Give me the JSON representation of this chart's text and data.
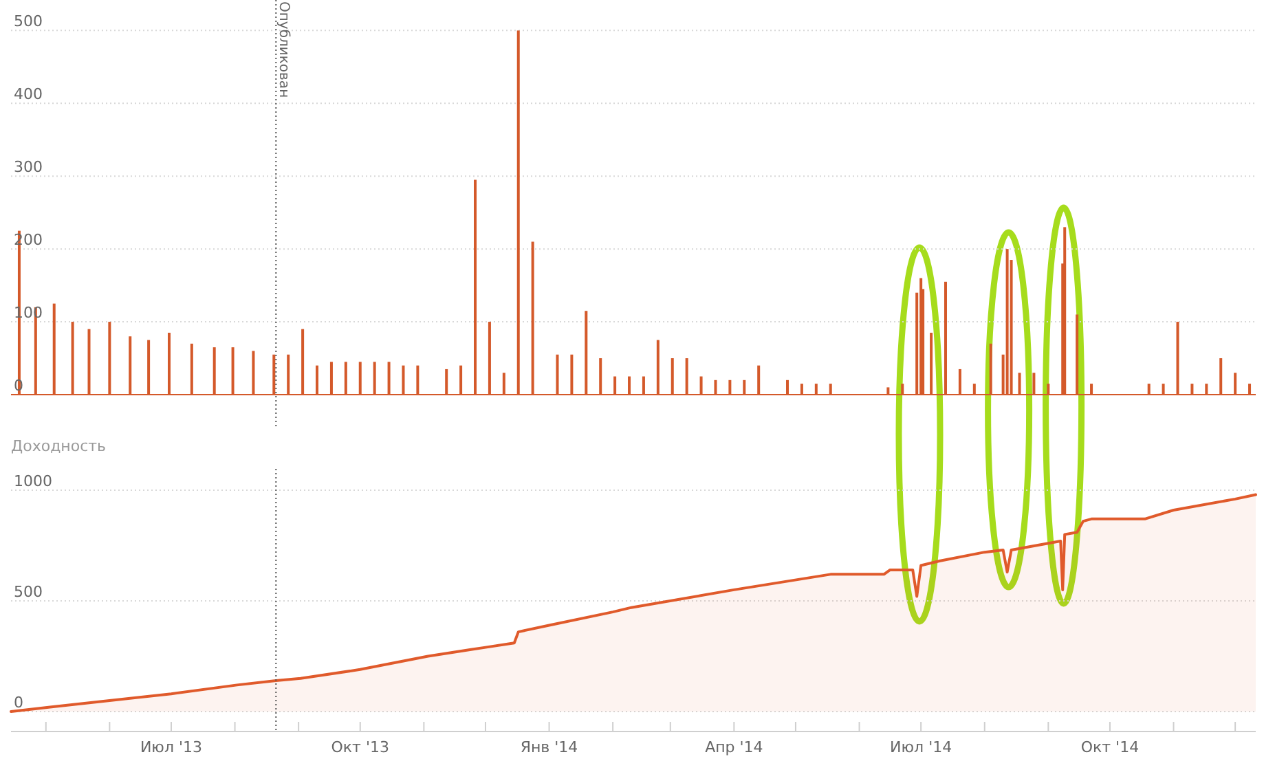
{
  "chart_data": [
    {
      "type": "bar",
      "color": "#d4592a",
      "x": [
        "2013-04-18",
        "2013-04-26",
        "2013-05-05",
        "2013-05-14",
        "2013-05-22",
        "2013-06-01",
        "2013-06-11",
        "2013-06-20",
        "2013-06-30",
        "2013-07-11",
        "2013-07-22",
        "2013-07-31",
        "2013-08-10",
        "2013-08-20",
        "2013-08-27",
        "2013-09-03",
        "2013-09-10",
        "2013-09-17",
        "2013-09-24",
        "2013-10-01",
        "2013-10-08",
        "2013-10-15",
        "2013-10-22",
        "2013-10-29",
        "2013-11-12",
        "2013-11-19",
        "2013-11-26",
        "2013-12-03",
        "2013-12-10",
        "2013-12-17",
        "2013-12-24",
        "2014-01-05",
        "2014-01-12",
        "2014-01-19",
        "2014-01-26",
        "2014-02-02",
        "2014-02-09",
        "2014-02-16",
        "2014-02-23",
        "2014-03-02",
        "2014-03-09",
        "2014-03-16",
        "2014-03-23",
        "2014-03-30",
        "2014-04-06",
        "2014-04-13",
        "2014-04-27",
        "2014-05-04",
        "2014-05-11",
        "2014-05-18",
        "2014-06-15",
        "2014-06-22",
        "2014-06-29",
        "2014-07-01",
        "2014-07-02",
        "2014-07-06",
        "2014-07-13",
        "2014-07-20",
        "2014-07-27",
        "2014-08-04",
        "2014-08-10",
        "2014-08-12",
        "2014-08-14",
        "2014-08-18",
        "2014-08-25",
        "2014-09-01",
        "2014-09-08",
        "2014-09-09",
        "2014-09-15",
        "2014-09-22",
        "2014-10-20",
        "2014-10-27",
        "2014-11-03",
        "2014-11-10",
        "2014-11-17",
        "2014-11-24",
        "2014-12-01",
        "2014-12-08"
      ],
      "values": [
        225,
        120,
        125,
        100,
        90,
        100,
        80,
        75,
        85,
        70,
        65,
        65,
        60,
        55,
        55,
        90,
        40,
        45,
        45,
        45,
        45,
        45,
        40,
        40,
        35,
        40,
        295,
        100,
        30,
        500,
        210,
        55,
        55,
        115,
        50,
        25,
        25,
        25,
        75,
        50,
        50,
        25,
        20,
        20,
        20,
        40,
        20,
        15,
        15,
        15,
        10,
        15,
        140,
        160,
        145,
        85,
        155,
        35,
        15,
        70,
        55,
        200,
        185,
        30,
        30,
        15,
        180,
        230,
        110,
        15,
        15,
        15,
        100,
        15,
        15,
        50,
        30,
        15
      ],
      "xlim": [
        "2013-04-14",
        "2014-12-11"
      ],
      "ylim": [
        0,
        540
      ],
      "yticks": [
        0,
        100,
        200,
        300,
        400,
        500
      ],
      "grid": "y",
      "tick_labels": "y",
      "ref_lines": [
        {
          "axis": "x",
          "value": "2013-08-21",
          "label": "Опубликован"
        }
      ]
    },
    {
      "type": "area",
      "title": "Доходность",
      "color": "#e05a2b",
      "x": [
        "2013-04-14",
        "2013-05-03",
        "2013-06-01",
        "2013-07-01",
        "2013-08-02",
        "2013-08-21",
        "2013-09-02",
        "2013-10-01",
        "2013-11-03",
        "2013-11-24",
        "2013-12-01",
        "2013-12-15",
        "2013-12-17",
        "2014-01-01",
        "2014-02-01",
        "2014-02-10",
        "2014-04-01",
        "2014-05-18",
        "2014-06-13",
        "2014-06-16",
        "2014-06-27",
        "2014-06-29",
        "2014-07-01",
        "2014-07-10",
        "2014-08-01",
        "2014-08-10",
        "2014-08-12",
        "2014-08-14",
        "2014-09-01",
        "2014-09-07",
        "2014-09-08",
        "2014-09-09",
        "2014-09-15",
        "2014-09-18",
        "2014-09-22",
        "2014-10-18",
        "2014-11-01",
        "2014-12-01",
        "2014-12-11"
      ],
      "values": [
        0,
        20,
        50,
        80,
        120,
        140,
        150,
        190,
        250,
        280,
        290,
        310,
        360,
        390,
        450,
        470,
        550,
        620,
        620,
        640,
        640,
        520,
        660,
        680,
        720,
        730,
        630,
        730,
        760,
        770,
        550,
        800,
        810,
        860,
        870,
        870,
        910,
        960,
        980
      ],
      "xlim": [
        "2013-04-14",
        "2014-12-11"
      ],
      "ylim": [
        -90,
        1090
      ],
      "yticks": [
        0,
        500,
        1000
      ],
      "grid": "y",
      "xticks": [
        {
          "value": "2013-05-01",
          "label": null
        },
        {
          "value": "2013-06-01",
          "label": null
        },
        {
          "value": "2013-07-01",
          "label": "Июл '13"
        },
        {
          "value": "2013-08-01",
          "label": null
        },
        {
          "value": "2013-09-01",
          "label": null
        },
        {
          "value": "2013-10-01",
          "label": "Окт '13"
        },
        {
          "value": "2013-11-01",
          "label": null
        },
        {
          "value": "2013-12-01",
          "label": null
        },
        {
          "value": "2014-01-01",
          "label": "Янв '14"
        },
        {
          "value": "2014-02-01",
          "label": null
        },
        {
          "value": "2014-03-01",
          "label": null
        },
        {
          "value": "2014-04-01",
          "label": "Апр '14"
        },
        {
          "value": "2014-05-01",
          "label": null
        },
        {
          "value": "2014-06-01",
          "label": null
        },
        {
          "value": "2014-07-01",
          "label": "Июл '14"
        },
        {
          "value": "2014-08-01",
          "label": null
        },
        {
          "value": "2014-09-01",
          "label": null
        },
        {
          "value": "2014-10-01",
          "label": "Окт '14"
        },
        {
          "value": "2014-11-01",
          "label": null
        },
        {
          "value": "2014-12-01",
          "label": null
        }
      ],
      "ref_lines": [
        {
          "axis": "x",
          "value": "2013-08-21"
        }
      ]
    }
  ]
}
